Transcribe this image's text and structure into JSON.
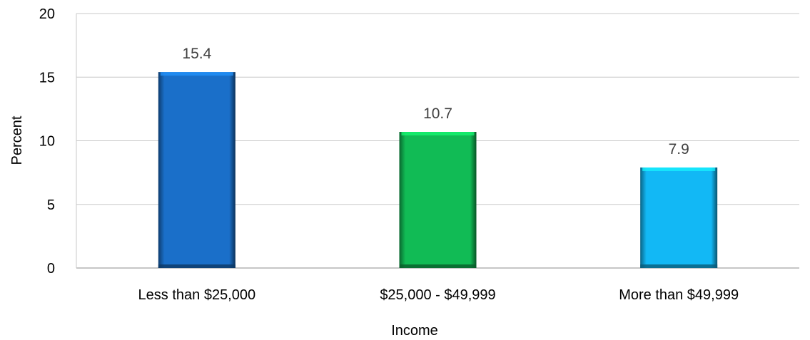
{
  "chart_data": {
    "type": "bar",
    "title": "",
    "xlabel": "Income",
    "ylabel": "Percent",
    "categories": [
      "Less than $25,000",
      "$25,000 - $49,999",
      "More than $49,999"
    ],
    "values": [
      15.4,
      10.7,
      7.9
    ],
    "value_labels": [
      "15.4",
      "10.7",
      "7.9"
    ],
    "bar_colors": [
      "#1a6fc9",
      "#11bb55",
      "#12b8f5"
    ],
    "ylim": [
      0,
      20
    ],
    "yticks": [
      0,
      5,
      10,
      15,
      20
    ],
    "grid": true,
    "legend": "none"
  }
}
